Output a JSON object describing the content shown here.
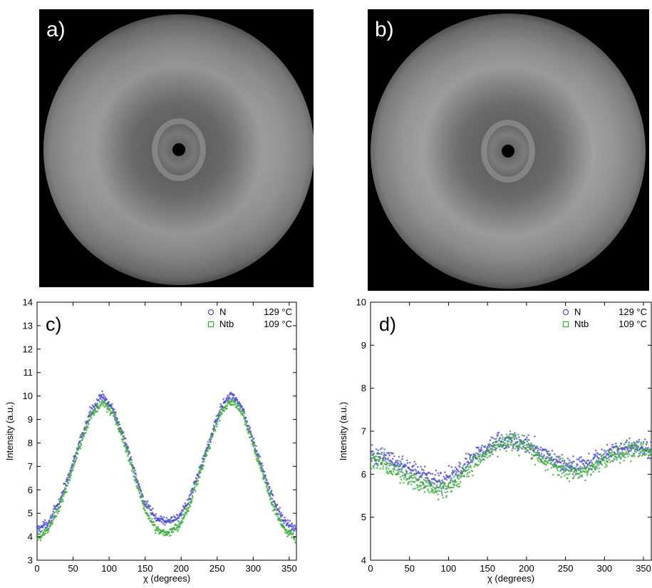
{
  "panels": {
    "a": {
      "label": "a)"
    },
    "b": {
      "label": "b)"
    }
  },
  "chart_data": [
    {
      "id": "c",
      "type": "scatter",
      "panel_label": "c)",
      "xlabel": "χ (degrees)",
      "ylabel": "Intensity (a.u.)",
      "xlim": [
        0,
        360
      ],
      "ylim": [
        3,
        14
      ],
      "xticks": [
        0,
        50,
        100,
        150,
        200,
        250,
        300,
        350
      ],
      "yticks": [
        3,
        4,
        5,
        6,
        7,
        8,
        9,
        10,
        11,
        12,
        13,
        14
      ],
      "grid": false,
      "legend_position": "top-right",
      "legend": [
        {
          "marker": "circle",
          "color": "#4a4acb",
          "label_name": "N",
          "label_temp": "129 °C"
        },
        {
          "marker": "square",
          "color": "#3aa83a",
          "label_name": "Ntb",
          "label_temp": "109 °C"
        }
      ],
      "series": [
        {
          "name": "N 129 °C",
          "color": "#4a4acb",
          "x": [
            0,
            15,
            30,
            45,
            60,
            75,
            90,
            105,
            120,
            135,
            150,
            165,
            180,
            195,
            210,
            225,
            240,
            255,
            270,
            285,
            300,
            315,
            330,
            345,
            360
          ],
          "y": [
            4.3,
            4.6,
            5.4,
            6.7,
            8.1,
            9.4,
            10.0,
            9.5,
            8.3,
            6.8,
            5.4,
            4.8,
            4.65,
            4.8,
            5.5,
            6.8,
            8.2,
            9.5,
            10.1,
            9.5,
            8.1,
            6.7,
            5.4,
            4.6,
            4.3
          ]
        },
        {
          "name": "Ntb 109 °C",
          "color": "#3aa83a",
          "x": [
            0,
            15,
            30,
            45,
            60,
            75,
            90,
            105,
            120,
            135,
            150,
            165,
            180,
            195,
            210,
            225,
            240,
            255,
            270,
            285,
            300,
            315,
            330,
            345,
            360
          ],
          "y": [
            3.9,
            4.3,
            5.2,
            6.5,
            7.9,
            9.2,
            9.75,
            9.3,
            8.1,
            6.6,
            5.1,
            4.35,
            4.15,
            4.35,
            5.2,
            6.6,
            8.0,
            9.3,
            9.8,
            9.3,
            7.9,
            6.5,
            5.1,
            4.3,
            3.9
          ]
        }
      ]
    },
    {
      "id": "d",
      "type": "scatter",
      "panel_label": "d)",
      "xlabel": "χ (degrees)",
      "ylabel": "Intensity (a.u.)",
      "xlim": [
        0,
        360
      ],
      "ylim": [
        4,
        10
      ],
      "xticks": [
        0,
        50,
        100,
        150,
        200,
        250,
        300,
        350
      ],
      "yticks": [
        4,
        5,
        6,
        7,
        8,
        9,
        10
      ],
      "grid": false,
      "legend_position": "top-right",
      "legend": [
        {
          "marker": "circle",
          "color": "#4a4acb",
          "label_name": "N",
          "label_temp": "129 °C"
        },
        {
          "marker": "square",
          "color": "#3aa83a",
          "label_name": "Ntb",
          "label_temp": "109 °C"
        }
      ],
      "series": [
        {
          "name": "N 129 °C",
          "color": "#4a4acb",
          "x": [
            0,
            15,
            30,
            45,
            60,
            75,
            90,
            105,
            120,
            135,
            150,
            165,
            180,
            195,
            210,
            225,
            240,
            255,
            270,
            285,
            300,
            315,
            330,
            345,
            360
          ],
          "y": [
            6.45,
            6.4,
            6.3,
            6.2,
            6.05,
            5.9,
            5.8,
            5.95,
            6.2,
            6.45,
            6.65,
            6.75,
            6.8,
            6.75,
            6.6,
            6.45,
            6.3,
            6.2,
            6.2,
            6.3,
            6.45,
            6.55,
            6.6,
            6.6,
            6.55
          ]
        },
        {
          "name": "Ntb 109 °C",
          "color": "#3aa83a",
          "x": [
            0,
            15,
            30,
            45,
            60,
            75,
            90,
            105,
            120,
            135,
            150,
            165,
            180,
            195,
            210,
            225,
            240,
            255,
            270,
            285,
            300,
            315,
            330,
            345,
            360
          ],
          "y": [
            6.35,
            6.25,
            6.1,
            5.95,
            5.8,
            5.7,
            5.6,
            5.75,
            6.0,
            6.3,
            6.55,
            6.7,
            6.75,
            6.7,
            6.5,
            6.3,
            6.15,
            6.05,
            6.05,
            6.15,
            6.3,
            6.45,
            6.55,
            6.55,
            6.5
          ]
        }
      ]
    }
  ]
}
